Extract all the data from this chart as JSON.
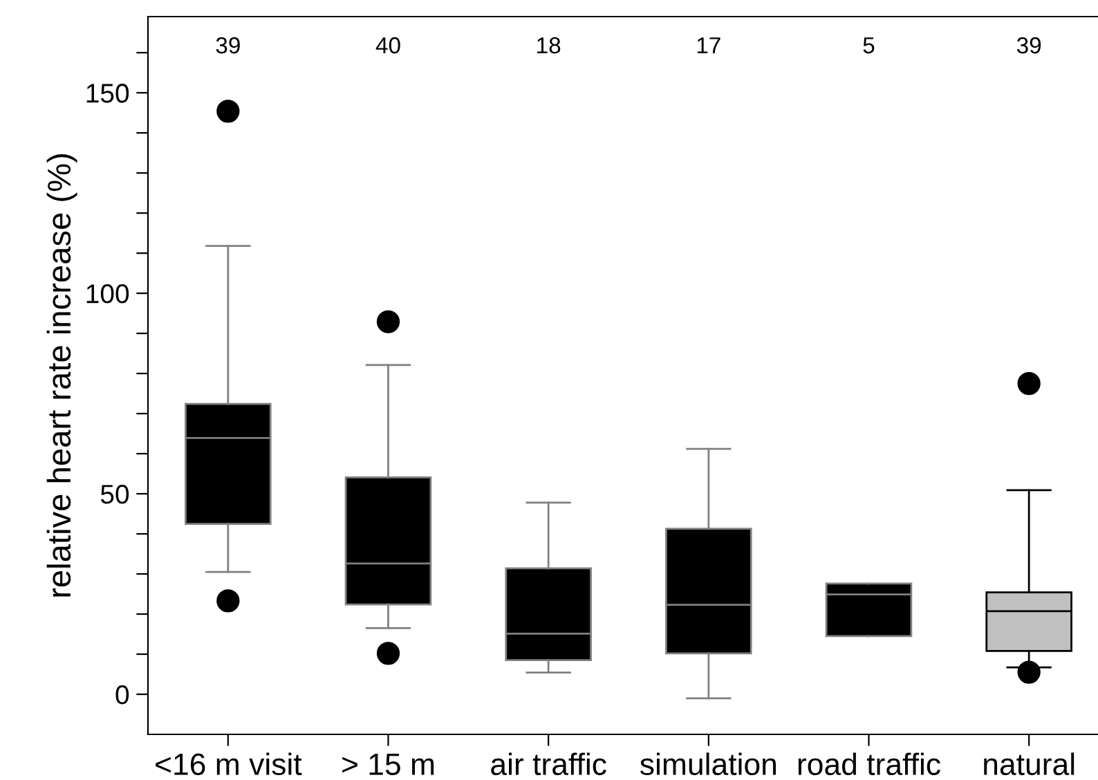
{
  "chart_data": {
    "type": "box",
    "ylabel": "relative heart rate increase (%)",
    "categories": [
      "<16 m visit",
      "> 15 m",
      "air traffic",
      "simulation",
      "road traffic",
      "natural"
    ],
    "boxes": [
      {
        "low": 30.5,
        "q1": 42.5,
        "median": 63.9,
        "q3": 72.4,
        "high": 111.8,
        "outliers": [
          145.4,
          23.3
        ]
      },
      {
        "low": 16.5,
        "q1": 22.4,
        "median": 32.6,
        "q3": 54.1,
        "high": 82.1,
        "outliers": [
          92.9,
          10.2
        ]
      },
      {
        "low": 5.4,
        "q1": 8.5,
        "median": 15.1,
        "q3": 31.4,
        "high": 47.8
      },
      {
        "low": -1.0,
        "q1": 10.2,
        "median": 22.3,
        "q3": 41.3,
        "high": 61.2
      },
      {
        "low": 14.5,
        "q1": 14.5,
        "median": 24.9,
        "q3": 27.6,
        "high": 27.6
      },
      {
        "low": 6.7,
        "q1": 10.8,
        "median": 20.7,
        "q3": 25.4,
        "high": 50.9,
        "outliers": [
          77.5,
          5.5
        ]
      }
    ],
    "colors": [
      "#000000",
      "#000000",
      "#000000",
      "#000000",
      "#000000",
      "#c0c0c0"
    ],
    "ylim": [
      -10,
      169
    ],
    "yticks": [
      0,
      {
        "value": 10,
        "label": null
      },
      {
        "value": 20,
        "label": null
      },
      {
        "value": 30,
        "label": null
      },
      {
        "value": 40,
        "label": null
      },
      50,
      {
        "value": 60,
        "label": null
      },
      {
        "value": 70,
        "label": null
      },
      {
        "value": 80,
        "label": null
      },
      {
        "value": 90,
        "label": null
      },
      100,
      {
        "value": 110,
        "label": null
      },
      {
        "value": 120,
        "label": null
      },
      {
        "value": 130,
        "label": null
      },
      {
        "value": 140,
        "label": null
      },
      150,
      {
        "value": 160,
        "label": null
      }
    ],
    "grid": false,
    "legend": false,
    "annotations": [
      "39",
      "40",
      "18",
      "17",
      "5",
      "39"
    ]
  }
}
